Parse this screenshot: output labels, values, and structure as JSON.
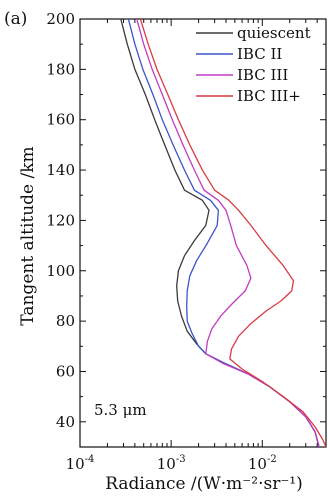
{
  "panel_label": "(a)",
  "chart_data": {
    "type": "line",
    "title": "",
    "xlabel": "Radiance /(W·m⁻²·sr⁻¹)",
    "ylabel": "Tangent altitude /km",
    "xscale": "log",
    "xlim": [
      0.0001,
      0.05
    ],
    "ylim": [
      30,
      200
    ],
    "xticks": [
      {
        "value": 0.0001,
        "base": "10",
        "exp": "-4"
      },
      {
        "value": 0.001,
        "base": "10",
        "exp": "-3"
      },
      {
        "value": 0.01,
        "base": "10",
        "exp": "-2"
      }
    ],
    "yticks": [
      40,
      60,
      80,
      100,
      120,
      140,
      160,
      180,
      200
    ],
    "grid": false,
    "legend_position": "top-right",
    "annotation": "5.3 μm",
    "series": [
      {
        "name": "quiescent",
        "color": "#3a3a3a",
        "points": [
          [
            0.00028,
            200
          ],
          [
            0.00033,
            190
          ],
          [
            0.0004,
            180
          ],
          [
            0.00052,
            170
          ],
          [
            0.00066,
            160
          ],
          [
            0.00085,
            150
          ],
          [
            0.0011,
            140
          ],
          [
            0.0014,
            132
          ],
          [
            0.0022,
            128
          ],
          [
            0.0026,
            124
          ],
          [
            0.0024,
            118
          ],
          [
            0.0018,
            112
          ],
          [
            0.0014,
            106
          ],
          [
            0.0012,
            100
          ],
          [
            0.00115,
            94
          ],
          [
            0.00118,
            88
          ],
          [
            0.0013,
            82
          ],
          [
            0.0015,
            76
          ],
          [
            0.0019,
            71
          ],
          [
            0.0024,
            67
          ],
          [
            0.004,
            63
          ],
          [
            0.007,
            59
          ],
          [
            0.012,
            54
          ],
          [
            0.02,
            48
          ],
          [
            0.03,
            42
          ],
          [
            0.038,
            36
          ],
          [
            0.042,
            30
          ]
        ]
      },
      {
        "name": "IBC II",
        "color": "#3a55c8",
        "points": [
          [
            0.00034,
            200
          ],
          [
            0.0004,
            190
          ],
          [
            0.00049,
            180
          ],
          [
            0.00063,
            170
          ],
          [
            0.0008,
            160
          ],
          [
            0.00105,
            150
          ],
          [
            0.0014,
            140
          ],
          [
            0.0018,
            132
          ],
          [
            0.0027,
            128
          ],
          [
            0.0033,
            124
          ],
          [
            0.0032,
            118
          ],
          [
            0.0025,
            111
          ],
          [
            0.0019,
            104
          ],
          [
            0.0016,
            98
          ],
          [
            0.0015,
            92
          ],
          [
            0.00148,
            86
          ],
          [
            0.0015,
            80
          ],
          [
            0.0017,
            75
          ],
          [
            0.002,
            70
          ],
          [
            0.0024,
            67
          ],
          [
            0.004,
            63
          ],
          [
            0.007,
            59
          ],
          [
            0.012,
            54
          ],
          [
            0.02,
            48
          ],
          [
            0.03,
            42
          ],
          [
            0.038,
            36
          ],
          [
            0.042,
            30
          ]
        ]
      },
      {
        "name": "IBC III",
        "color": "#c23bc2",
        "points": [
          [
            0.00042,
            200
          ],
          [
            0.0005,
            190
          ],
          [
            0.00062,
            180
          ],
          [
            0.0008,
            170
          ],
          [
            0.00103,
            160
          ],
          [
            0.00135,
            150
          ],
          [
            0.0018,
            140
          ],
          [
            0.0023,
            132
          ],
          [
            0.0033,
            128
          ],
          [
            0.004,
            124
          ],
          [
            0.0045,
            118
          ],
          [
            0.0052,
            110
          ],
          [
            0.0068,
            102
          ],
          [
            0.0075,
            97
          ],
          [
            0.0065,
            92
          ],
          [
            0.0047,
            87
          ],
          [
            0.0035,
            82
          ],
          [
            0.0028,
            77
          ],
          [
            0.0025,
            72
          ],
          [
            0.0024,
            67
          ],
          [
            0.0038,
            63
          ],
          [
            0.007,
            59
          ],
          [
            0.012,
            54
          ],
          [
            0.02,
            48
          ],
          [
            0.03,
            42
          ],
          [
            0.038,
            36
          ],
          [
            0.042,
            30
          ]
        ]
      },
      {
        "name": "IBC III+",
        "color": "#d83c44",
        "points": [
          [
            0.00046,
            200
          ],
          [
            0.00056,
            190
          ],
          [
            0.0007,
            180
          ],
          [
            0.00092,
            170
          ],
          [
            0.0012,
            160
          ],
          [
            0.0016,
            150
          ],
          [
            0.0022,
            140
          ],
          [
            0.003,
            132
          ],
          [
            0.0043,
            128
          ],
          [
            0.0055,
            124
          ],
          [
            0.0075,
            118
          ],
          [
            0.011,
            110
          ],
          [
            0.017,
            102
          ],
          [
            0.022,
            96
          ],
          [
            0.021,
            92
          ],
          [
            0.016,
            88
          ],
          [
            0.011,
            84
          ],
          [
            0.0075,
            79
          ],
          [
            0.0055,
            74
          ],
          [
            0.0046,
            69
          ],
          [
            0.0044,
            65
          ],
          [
            0.006,
            61
          ],
          [
            0.01,
            56
          ],
          [
            0.017,
            50
          ],
          [
            0.028,
            44
          ],
          [
            0.038,
            38
          ],
          [
            0.046,
            33
          ],
          [
            0.05,
            30
          ]
        ]
      }
    ]
  }
}
